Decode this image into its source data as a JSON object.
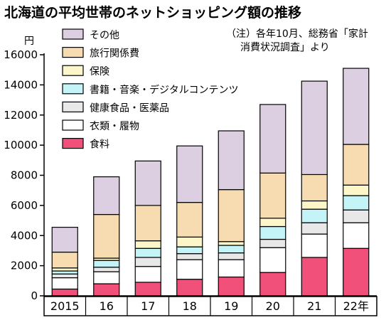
{
  "chart_data": {
    "type": "bar",
    "stacked": true,
    "title": "北海道の平均世帯のネットショッピング額の推移",
    "note_lines": [
      "（注）各年10月、総務省「家計",
      "消費状況調査」より"
    ],
    "ylabel": "円",
    "ylim": [
      0,
      16000
    ],
    "yticks": [
      "0",
      "2000",
      "4000",
      "6000",
      "8000",
      "10000",
      "12000",
      "14000",
      "16000"
    ],
    "categories": [
      "2015",
      "16",
      "17",
      "18",
      "19",
      "20",
      "21",
      "22年"
    ],
    "legend_position": "top-left",
    "grid": false,
    "series": [
      {
        "name": "食料",
        "color": "#f0507a",
        "values": [
          450,
          800,
          900,
          1100,
          1250,
          1550,
          2550,
          3150
        ]
      },
      {
        "name": "衣類・履物",
        "color": "#ffffff",
        "values": [
          750,
          800,
          1050,
          1300,
          1150,
          1650,
          1550,
          1700
        ]
      },
      {
        "name": "健康食品・医薬品",
        "color": "#e8e8e8",
        "values": [
          250,
          300,
          600,
          400,
          450,
          550,
          750,
          850
        ]
      },
      {
        "name": "書籍・音楽・デジタルコンテンツ",
        "color": "#c4f4f8",
        "values": [
          200,
          450,
          600,
          450,
          500,
          850,
          900,
          950
        ]
      },
      {
        "name": "保険",
        "color": "#fcf6c8",
        "values": [
          200,
          150,
          500,
          650,
          250,
          550,
          550,
          700
        ]
      },
      {
        "name": "旅行関係費",
        "color": "#f6dcb0",
        "values": [
          1050,
          2900,
          2350,
          2300,
          3450,
          3000,
          1750,
          2700
        ]
      },
      {
        "name": "その他",
        "color": "#dccfe2",
        "values": [
          1650,
          2500,
          2950,
          3750,
          3900,
          4550,
          6200,
          5050
        ]
      }
    ]
  }
}
